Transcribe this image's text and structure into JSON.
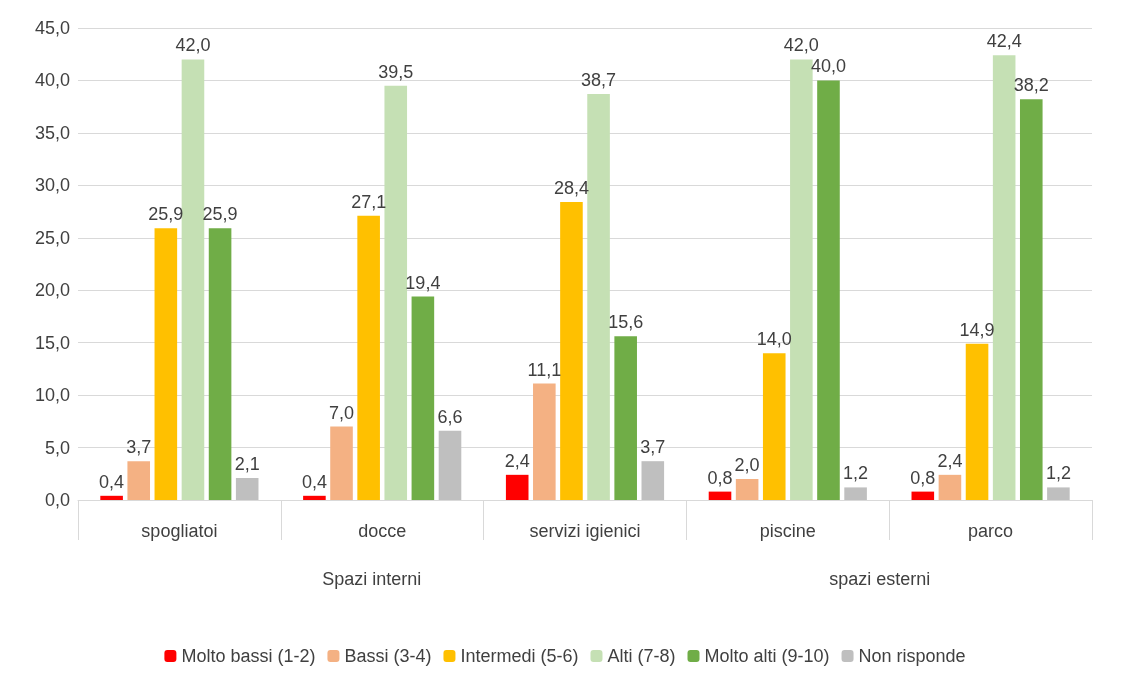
{
  "chart_data": {
    "type": "bar",
    "categories": [
      "spogliatoi",
      "docce",
      "servizi igienici",
      "piscine",
      "parco"
    ],
    "series": [
      {
        "name": "Molto bassi (1-2)",
        "color": "#ff0000",
        "values": [
          0.4,
          0.4,
          2.4,
          0.8,
          0.8
        ],
        "value_labels": [
          "0,4",
          "0,4",
          "2,4",
          "0,8",
          "0,8"
        ]
      },
      {
        "name": "Bassi (3-4)",
        "color": "#f4b183",
        "values": [
          3.7,
          7.0,
          11.1,
          2.0,
          2.4
        ],
        "value_labels": [
          "3,7",
          "7,0",
          "11,1",
          "2,0",
          "2,4"
        ]
      },
      {
        "name": "Intermedi (5-6)",
        "color": "#ffc000",
        "values": [
          25.9,
          27.1,
          28.4,
          14.0,
          14.9
        ],
        "value_labels": [
          "25,9",
          "27,1",
          "28,4",
          "14,0",
          "14,9"
        ]
      },
      {
        "name": "Alti (7-8)",
        "color": "#c5e0b4",
        "values": [
          42.0,
          39.5,
          38.7,
          42.0,
          42.4
        ],
        "value_labels": [
          "42,0",
          "39,5",
          "38,7",
          "42,0",
          "42,4"
        ]
      },
      {
        "name": "Molto alti (9-10)",
        "color": "#70ad47",
        "values": [
          25.9,
          19.4,
          15.6,
          40.0,
          38.2
        ],
        "value_labels": [
          "25,9",
          "19,4",
          "15,6",
          "40,0",
          "38,2"
        ]
      },
      {
        "name": "Non risponde",
        "color": "#bfbfbf",
        "values": [
          2.1,
          6.6,
          3.7,
          1.2,
          1.2
        ],
        "value_labels": [
          "2,1",
          "6,6",
          "3,7",
          "1,2",
          "1,2"
        ]
      }
    ],
    "ylim": [
      0,
      45
    ],
    "yticks": [
      {
        "value": 0,
        "label": "0,0"
      },
      {
        "value": 5,
        "label": "5,0"
      },
      {
        "value": 10,
        "label": "10,0"
      },
      {
        "value": 15,
        "label": "15,0"
      },
      {
        "value": 20,
        "label": "20,0"
      },
      {
        "value": 25,
        "label": "25,0"
      },
      {
        "value": 30,
        "label": "30,0"
      },
      {
        "value": 35,
        "label": "35,0"
      },
      {
        "value": 40,
        "label": "40,0"
      },
      {
        "value": 45,
        "label": "45,0"
      }
    ],
    "annotations": [
      "Spazi interni",
      "spazi esterni"
    ],
    "grid": "y",
    "legend": "bottom"
  }
}
